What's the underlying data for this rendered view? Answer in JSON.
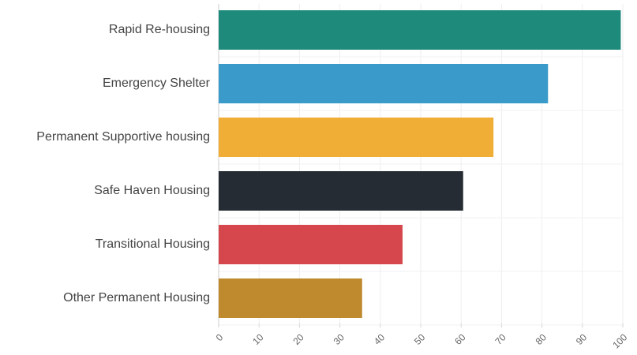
{
  "chart_data": {
    "type": "hbar",
    "categories": [
      "Rapid Re-housing",
      "Emergency Shelter",
      "Permanent Supportive housing",
      "Safe Haven Housing",
      "Transitional Housing",
      "Other Permanent Housing"
    ],
    "values": [
      99.5,
      81.5,
      68,
      60.5,
      45.5,
      35.5
    ],
    "colors": [
      "#1e8a7c",
      "#3a9bcb",
      "#f0ae37",
      "#262c33",
      "#d5474d",
      "#bf8a2e"
    ],
    "xlim": [
      0,
      100
    ],
    "xticks": [
      0,
      10,
      20,
      30,
      40,
      50,
      60,
      70,
      80,
      90,
      100
    ],
    "grid": true
  }
}
